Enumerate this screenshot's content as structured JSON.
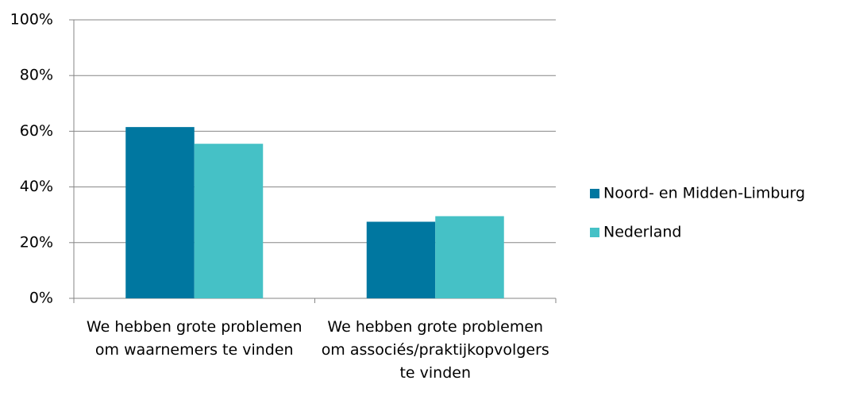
{
  "chart_data": {
    "type": "bar",
    "categories": [
      "We hebben grote problemen om waarnemers te vinden",
      "We hebben grote problemen om associés/praktijkopvolgers te vinden"
    ],
    "series": [
      {
        "name": "Noord- en Midden-Limburg",
        "color": "#0077a0",
        "values": [
          61.5,
          27.5
        ]
      },
      {
        "name": "Nederland",
        "color": "#45c1c6",
        "values": [
          55.5,
          29.5
        ]
      }
    ],
    "ylim": [
      0,
      100
    ],
    "yticks": [
      {
        "value": 0,
        "label": "0%"
      },
      {
        "value": 20,
        "label": "20%"
      },
      {
        "value": 40,
        "label": "40%"
      },
      {
        "value": 60,
        "label": "60%"
      },
      {
        "value": 80,
        "label": "80%"
      },
      {
        "value": 100,
        "label": "100%"
      }
    ],
    "grid": true,
    "legend": "right"
  }
}
